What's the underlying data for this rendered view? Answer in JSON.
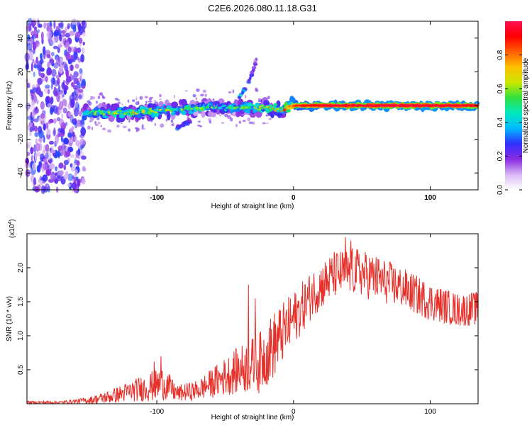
{
  "title": "C2E6.2026.080.11.18.G31",
  "colors": {
    "snr_line": "#e8302a",
    "colormap": [
      "#ffffff",
      "#d9b8f5",
      "#8a2be2",
      "#3030ff",
      "#00b8ff",
      "#00e8c0",
      "#30e040",
      "#c8e800",
      "#ffc000",
      "#ff6000",
      "#ff0000",
      "#ff1050"
    ]
  },
  "chart_data": [
    {
      "type": "heatmap",
      "title": "C2E6.2026.080.11.18.G31",
      "xlabel": "Height of straight line (km)",
      "ylabel": "Frequency (Hz)",
      "xlim": [
        -195,
        135
      ],
      "ylim": [
        -50,
        50
      ],
      "x_ticks": [
        -100,
        0,
        100
      ],
      "x_tick_labels": [
        "-100",
        "0",
        "100"
      ],
      "y_ticks": [
        -40,
        -20,
        0,
        20,
        40
      ],
      "y_tick_labels": [
        "-40",
        "-20",
        "0",
        "20",
        "40"
      ],
      "colorbar": {
        "label": "Normalized spectral amplitude",
        "range": [
          0.0,
          1.0
        ],
        "ticks": [
          0.0,
          0.2,
          0.4,
          0.6,
          0.8
        ],
        "tick_labels": [
          "0.0",
          "0.2",
          "0.4",
          "0.6",
          "0.8"
        ]
      },
      "noise_region": {
        "x": [
          -195,
          -153
        ],
        "freq": [
          -50,
          50
        ],
        "amplitude": 0.25
      },
      "signal_trace": [
        {
          "x": -153,
          "freq": -5.0,
          "amplitude": 0.45
        },
        {
          "x": -140,
          "freq": -4.0,
          "amplitude": 0.5
        },
        {
          "x": -120,
          "freq": -4.5,
          "amplitude": 0.55
        },
        {
          "x": -100,
          "freq": -3.0,
          "amplitude": 0.55
        },
        {
          "x": -80,
          "freq": -2.0,
          "amplitude": 0.5
        },
        {
          "x": -60,
          "freq": -1.0,
          "amplitude": 0.45
        },
        {
          "x": -40,
          "freq": -1.5,
          "amplitude": 0.45
        },
        {
          "x": -20,
          "freq": -1.0,
          "amplitude": 0.55
        },
        {
          "x": -10,
          "freq": -2.5,
          "amplitude": 0.7
        },
        {
          "x": 0,
          "freq": 0.0,
          "amplitude": 0.85
        },
        {
          "x": 20,
          "freq": 0.0,
          "amplitude": 0.95
        },
        {
          "x": 60,
          "freq": 0.0,
          "amplitude": 0.97
        },
        {
          "x": 100,
          "freq": 0.0,
          "amplitude": 0.97
        },
        {
          "x": 135,
          "freq": 0.0,
          "amplitude": 0.95
        }
      ],
      "upper_branch": [
        {
          "x": -40,
          "freq": 5,
          "amplitude": 0.35
        },
        {
          "x": -35,
          "freq": 10,
          "amplitude": 0.3
        },
        {
          "x": -30,
          "freq": 20,
          "amplitude": 0.2
        },
        {
          "x": -27,
          "freq": 28,
          "amplitude": 0.15
        }
      ],
      "lower_branch": [
        {
          "x": -85,
          "freq": -13,
          "amplitude": 0.25
        },
        {
          "x": -80,
          "freq": -11,
          "amplitude": 0.25
        },
        {
          "x": -75,
          "freq": -9,
          "amplitude": 0.2
        }
      ]
    },
    {
      "type": "line",
      "xlabel": "Height of straight line (km)",
      "ylabel": "SNR (10 * v/v)",
      "y_multiplier_label": "(x10",
      "y_multiplier_exponent": "4",
      "y_multiplier_close": ")",
      "xlim": [
        -195,
        135
      ],
      "ylim": [
        0,
        2.5
      ],
      "x_ticks": [
        -100,
        0,
        100
      ],
      "x_tick_labels": [
        "-100",
        "0",
        "100"
      ],
      "y_ticks": [
        0.5,
        1.0,
        1.5,
        2.0
      ],
      "y_tick_labels": [
        "0.5",
        "1.0",
        "1.5",
        "2.0"
      ],
      "series": [
        {
          "name": "SNR",
          "envelope": [
            {
              "x": -195,
              "mean": 0.02,
              "spread": 0.02
            },
            {
              "x": -170,
              "mean": 0.02,
              "spread": 0.02
            },
            {
              "x": -150,
              "mean": 0.05,
              "spread": 0.05
            },
            {
              "x": -135,
              "mean": 0.1,
              "spread": 0.1
            },
            {
              "x": -120,
              "mean": 0.18,
              "spread": 0.15
            },
            {
              "x": -105,
              "mean": 0.25,
              "spread": 0.22
            },
            {
              "x": -95,
              "mean": 0.3,
              "spread": 0.25
            },
            {
              "x": -85,
              "mean": 0.15,
              "spread": 0.12
            },
            {
              "x": -70,
              "mean": 0.2,
              "spread": 0.15
            },
            {
              "x": -55,
              "mean": 0.35,
              "spread": 0.25
            },
            {
              "x": -40,
              "mean": 0.5,
              "spread": 0.35
            },
            {
              "x": -25,
              "mean": 0.6,
              "spread": 0.45
            },
            {
              "x": -15,
              "mean": 0.85,
              "spread": 0.5
            },
            {
              "x": 0,
              "mean": 1.25,
              "spread": 0.4
            },
            {
              "x": 15,
              "mean": 1.65,
              "spread": 0.35
            },
            {
              "x": 30,
              "mean": 1.9,
              "spread": 0.35
            },
            {
              "x": 45,
              "mean": 1.95,
              "spread": 0.35
            },
            {
              "x": 60,
              "mean": 1.85,
              "spread": 0.35
            },
            {
              "x": 80,
              "mean": 1.7,
              "spread": 0.3
            },
            {
              "x": 100,
              "mean": 1.5,
              "spread": 0.28
            },
            {
              "x": 120,
              "mean": 1.38,
              "spread": 0.25
            },
            {
              "x": 135,
              "mean": 1.4,
              "spread": 0.25
            }
          ],
          "spikes": [
            {
              "x": -102,
              "value": 0.62
            },
            {
              "x": -97,
              "value": 0.7
            },
            {
              "x": -33,
              "value": 1.75
            },
            {
              "x": -28,
              "value": 1.55
            },
            {
              "x": 38,
              "value": 2.45
            },
            {
              "x": 42,
              "value": 2.4
            }
          ]
        }
      ]
    }
  ]
}
